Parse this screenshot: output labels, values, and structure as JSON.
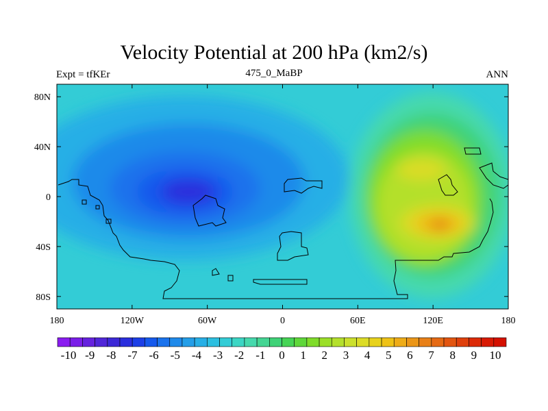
{
  "title": "Velocity Potential at 200 hPa (km2/s)",
  "left_label": "Expt = tfKEr",
  "center_label": "475_0_MaBP",
  "right_label": "ANN",
  "chart_data": {
    "type": "heatmap",
    "title": "Velocity Potential at 200 hPa (km2/s)",
    "x_ticks": [
      "180",
      "120W",
      "60W",
      "0",
      "60E",
      "120E",
      "180"
    ],
    "y_ticks": [
      "80N",
      "40N",
      "0",
      "40S",
      "80S"
    ],
    "xlim": [
      -180,
      180
    ],
    "ylim": [
      -90,
      90
    ],
    "colorbar": {
      "labels": [
        "-10",
        "-9",
        "-8",
        "-7",
        "-6",
        "-5",
        "-4",
        "-3",
        "-2",
        "-1",
        "0",
        "1",
        "2",
        "3",
        "4",
        "5",
        "6",
        "7",
        "8",
        "9",
        "10"
      ],
      "min": -10,
      "max": 10,
      "colors": [
        "#8a1cf0",
        "#7a1ee8",
        "#6622de",
        "#5026d8",
        "#3c28d6",
        "#2a2edd",
        "#1c3fe6",
        "#1559ec",
        "#1a72ec",
        "#1f8aea",
        "#249ee8",
        "#27afe6",
        "#2cbfe0",
        "#33ccd6",
        "#3cd6c4",
        "#46d9ad",
        "#44d593",
        "#3fd277",
        "#46d455",
        "#5fd73a",
        "#7fdc2a",
        "#9bdf28",
        "#b4e02c",
        "#cbe02c",
        "#dcdc26",
        "#e8d21c",
        "#eec217",
        "#eeac18",
        "#eb9618",
        "#e88018",
        "#e56a14",
        "#e25510",
        "#df400c",
        "#dc2a08",
        "#d81a04",
        "#d41000"
      ]
    },
    "features": [
      {
        "name": "negative minimum",
        "lon": -75,
        "lat": 5,
        "value": -6.5
      },
      {
        "name": "positive maximum",
        "lon": 125,
        "lat": -25,
        "value": 7.8
      },
      {
        "name": "secondary positive maximum",
        "lon": 115,
        "lat": 25,
        "value": 4.5
      }
    ]
  }
}
